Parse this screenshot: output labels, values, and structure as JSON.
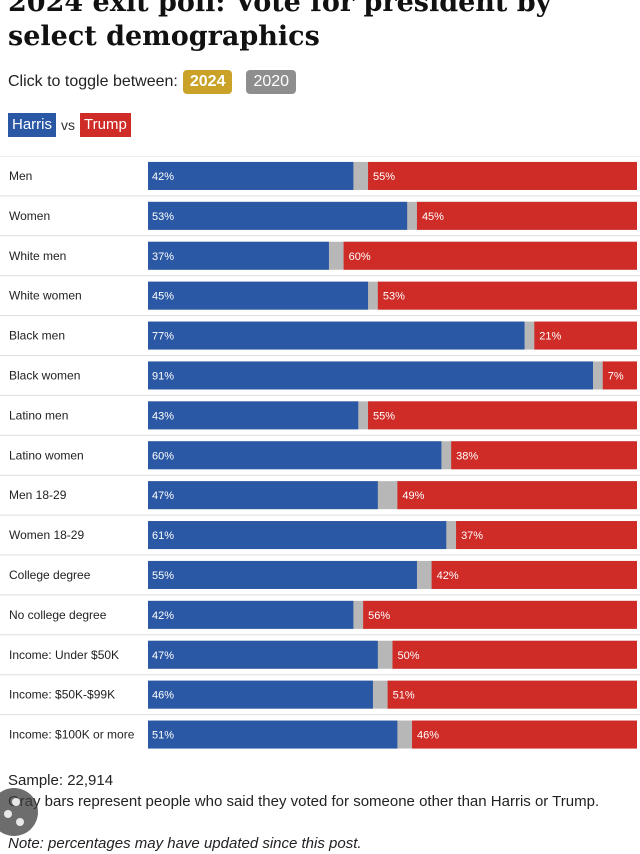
{
  "page": {
    "title": "2024 exit poll: Vote for president by select demographics",
    "toggle_label": "Click to toggle between:",
    "toggle_options": [
      "2024",
      "2020"
    ],
    "legend": {
      "harris": "Harris",
      "vs": "vs",
      "trump": "Trump"
    },
    "sample": "Sample: 22,914",
    "gray_note": "Gray bars represent people who said they voted for someone other than Harris or Trump.",
    "note": "Note: percentages may have updated since this post.",
    "corner_icon": "share-badge-icon"
  },
  "colors": {
    "harris": "#2a58a4",
    "trump": "#cf2b27",
    "other": "#b7b7b7",
    "selected_toggle": "#c9a227",
    "unselected_toggle": "#8e8e8e"
  },
  "chart_data": {
    "type": "bar",
    "stacked": true,
    "orientation": "horizontal",
    "categories": [
      "Men",
      "Women",
      "White men",
      "White women",
      "Black men",
      "Black women",
      "Latino men",
      "Latino women",
      "Men 18-29",
      "Women 18-29",
      "College degree",
      "No college degree",
      "Income: Under $50K",
      "Income: $50K-$99K",
      "Income: $100K or more"
    ],
    "series": [
      {
        "name": "Harris",
        "values": [
          42,
          53,
          37,
          45,
          77,
          91,
          43,
          60,
          47,
          61,
          55,
          42,
          47,
          46,
          51
        ]
      },
      {
        "name": "Trump",
        "values": [
          55,
          45,
          60,
          53,
          21,
          7,
          55,
          38,
          49,
          37,
          42,
          56,
          50,
          51,
          46
        ]
      }
    ],
    "value_suffix": "%",
    "xlim": [
      0,
      100
    ]
  }
}
